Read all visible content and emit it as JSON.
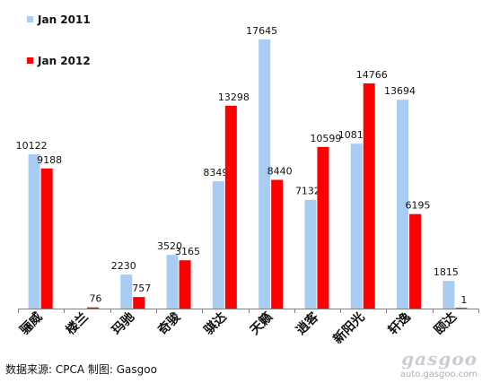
{
  "chart_data": {
    "type": "bar",
    "categories": [
      "骊威",
      "楼兰",
      "玛驰",
      "奇骏",
      "骐达",
      "天籁",
      "逍客",
      "新阳光",
      "轩逸",
      "颐达"
    ],
    "series": [
      {
        "name": "Jan 2011",
        "values": [
          10122,
          null,
          2230,
          3520,
          8349,
          17645,
          7132,
          10811,
          13694,
          1815
        ],
        "labels": [
          "10122",
          "",
          "2230",
          "3520",
          "8349",
          "17645",
          "7132",
          "10811",
          "13694",
          "1815"
        ]
      },
      {
        "name": "Jan 2012",
        "values": [
          9188,
          76,
          757,
          3165,
          13298,
          8440,
          10599,
          14766,
          6195,
          1
        ],
        "labels": [
          "9188",
          "76",
          "757",
          "3165",
          "13298",
          "8440",
          "10599",
          "14766",
          "6195",
          "1"
        ]
      }
    ],
    "colors": [
      "#a9cdf2",
      "#ff0000"
    ],
    "ylim": [
      0,
      18000
    ],
    "grid": false,
    "legend_position": "top-left"
  },
  "source_text": "数据来源: CPCA 制图: Gasgoo",
  "watermark": {
    "logo": "gasgoo",
    "url": "auto.gasgoo.com"
  }
}
